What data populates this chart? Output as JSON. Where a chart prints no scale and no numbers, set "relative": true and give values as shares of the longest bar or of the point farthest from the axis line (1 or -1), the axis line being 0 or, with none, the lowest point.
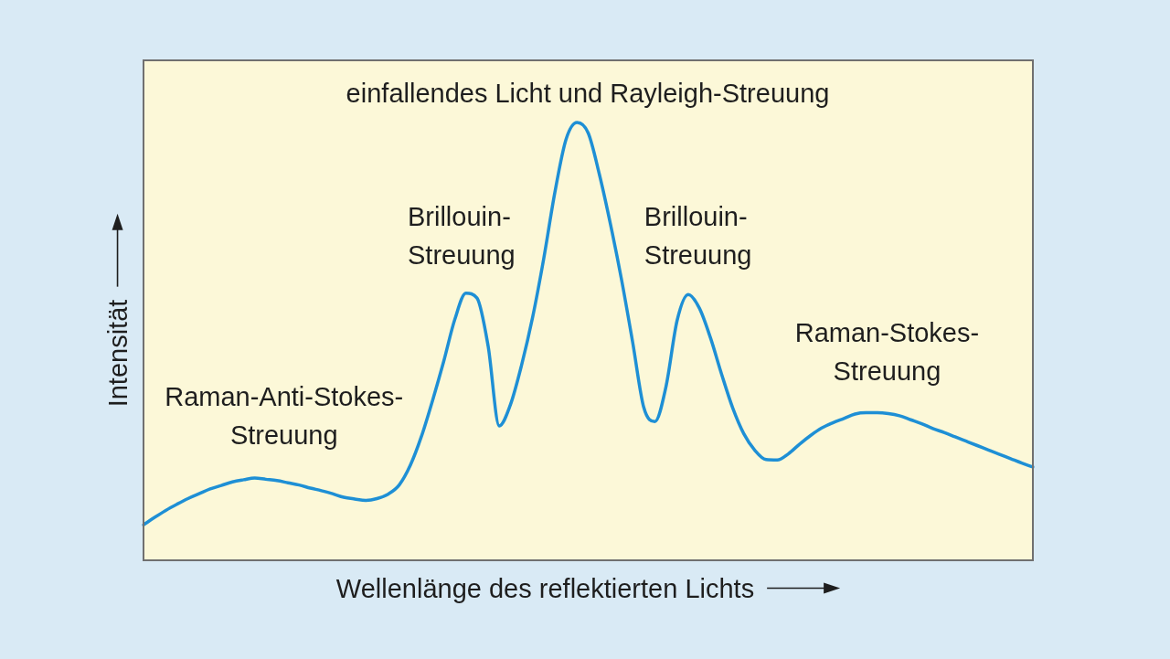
{
  "chart_data": {
    "type": "line",
    "relative": true,
    "xlabel": "Wellenlänge des reflektierten Lichts",
    "ylabel": "Intensität",
    "categories": [
      null,
      null,
      null,
      null,
      null,
      null,
      null,
      null,
      null,
      null,
      null,
      null,
      null,
      null,
      null,
      null,
      null,
      null,
      null,
      null,
      null,
      null,
      null,
      null,
      null,
      null,
      null,
      null,
      null,
      null,
      null,
      null,
      null,
      null,
      null,
      null,
      null,
      null,
      null,
      null,
      null,
      null,
      null,
      null,
      null,
      null,
      null,
      null,
      null,
      null,
      null,
      null,
      null,
      null,
      null,
      null,
      null,
      null,
      null,
      null,
      null,
      null,
      null,
      null,
      null,
      null,
      null,
      null,
      null,
      null,
      null,
      null,
      null,
      null,
      null,
      null,
      null,
      null,
      null,
      null,
      null
    ],
    "values": [
      0.081,
      0.098,
      0.114,
      0.128,
      0.141,
      0.152,
      0.163,
      0.171,
      0.179,
      0.184,
      0.188,
      0.185,
      0.182,
      0.177,
      0.172,
      0.165,
      0.159,
      0.152,
      0.144,
      0.14,
      0.137,
      0.141,
      0.151,
      0.172,
      0.217,
      0.283,
      0.365,
      0.454,
      0.55,
      0.61,
      0.599,
      0.489,
      0.307,
      0.355,
      0.445,
      0.555,
      0.689,
      0.84,
      0.961,
      1.0,
      0.976,
      0.882,
      0.768,
      0.641,
      0.498,
      0.349,
      0.317,
      0.397,
      0.548,
      0.607,
      0.576,
      0.508,
      0.425,
      0.348,
      0.289,
      0.251,
      0.23,
      0.229,
      0.243,
      0.265,
      0.285,
      0.302,
      0.314,
      0.324,
      0.334,
      0.337,
      0.337,
      0.335,
      0.33,
      0.321,
      0.312,
      0.301,
      0.292,
      0.282,
      0.272,
      0.262,
      0.252,
      0.242,
      0.232,
      0.222,
      0.213
    ],
    "color": "#1e8fd5",
    "annotations": [
      "Raman-Anti-Stokes-\nStreuung",
      "Brillouin-\nStreuung",
      "einfallendes Licht und Rayleigh-Streuung",
      "Brillouin-\nStreuung",
      "Raman-Stokes-\nStreuung"
    ]
  }
}
